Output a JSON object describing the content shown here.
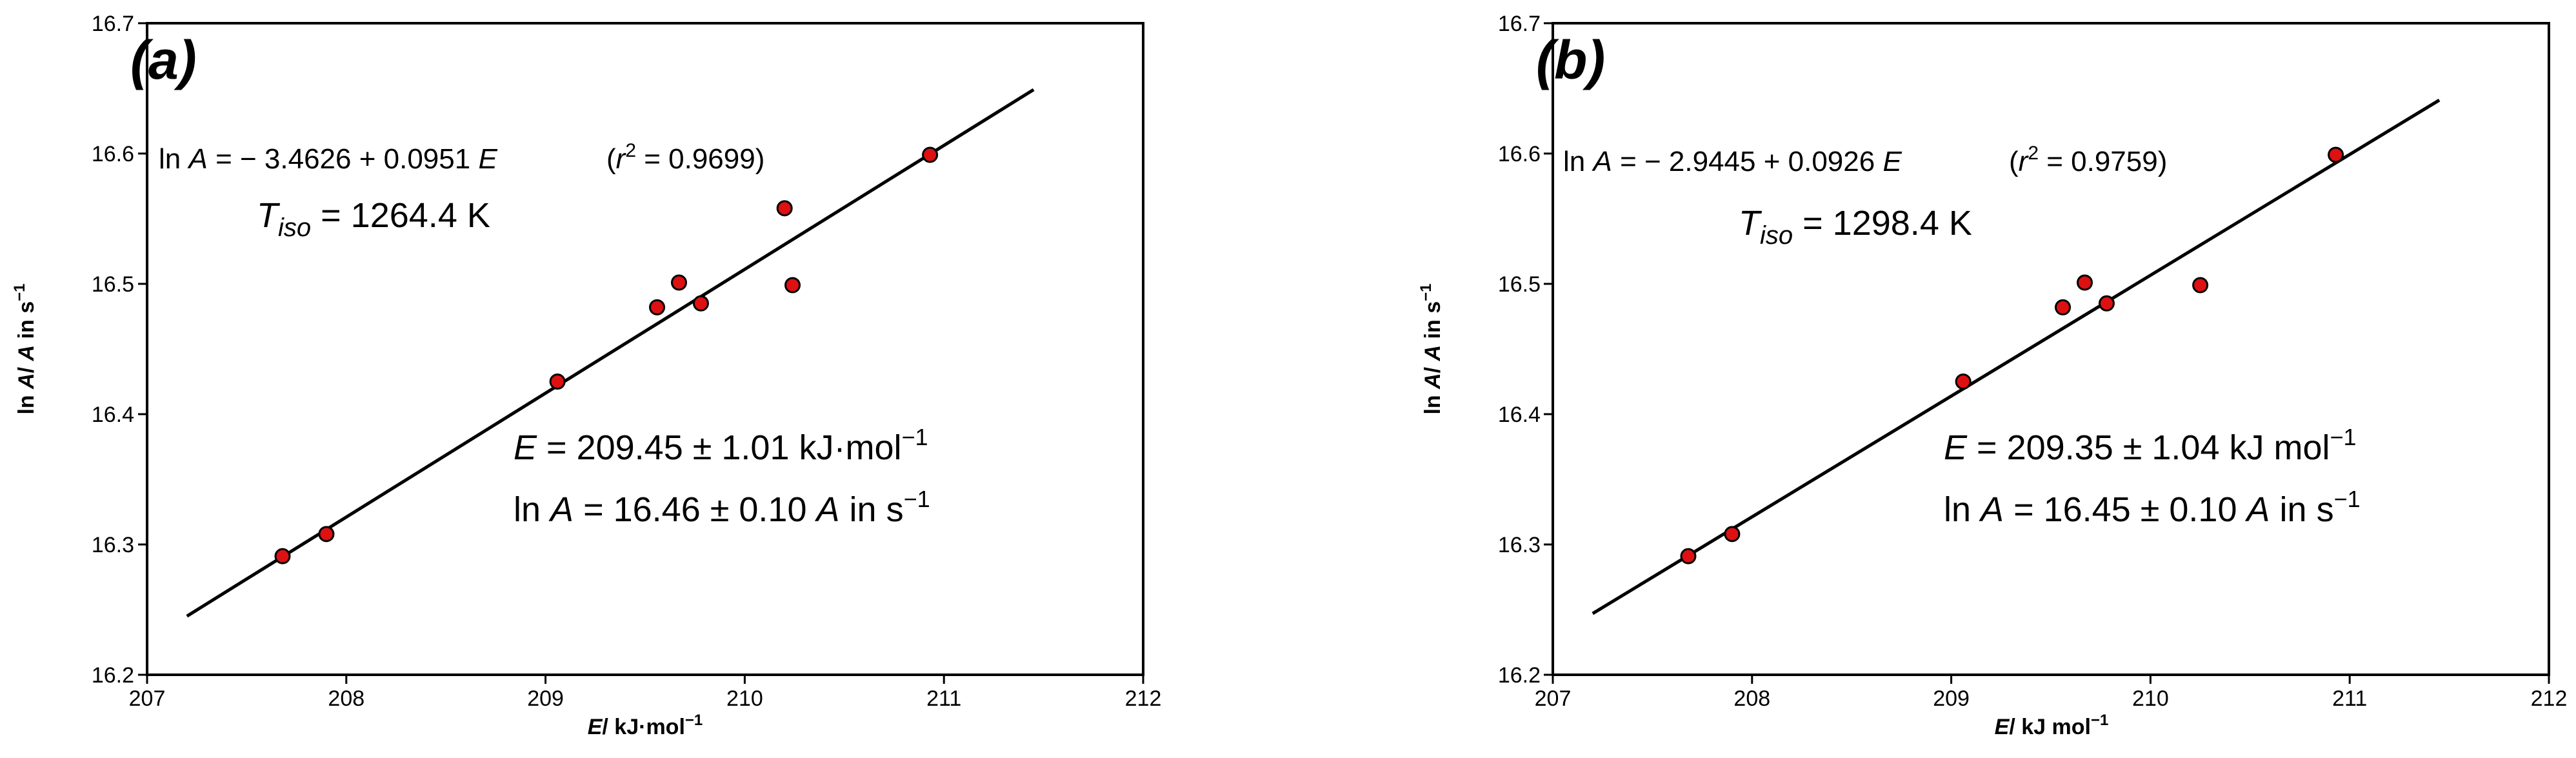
{
  "chart_data": [
    {
      "type": "scatter",
      "panel_label": "(a)",
      "xlabel": {
        "italic": "E",
        "rest": "/ kJ·mol",
        "sup": "−1"
      },
      "ylabel": {
        "pre": "ln ",
        "italic1": "A",
        "mid": "/ ",
        "italic2": "A",
        "post": " in s",
        "sup": "−1"
      },
      "xlim": [
        207,
        212
      ],
      "ylim": [
        16.2,
        16.7
      ],
      "x_ticks": [
        "207",
        "208",
        "209",
        "210",
        "211",
        "212"
      ],
      "y_ticks": [
        "16.2",
        "16.3",
        "16.4",
        "16.5",
        "16.6",
        "16.7"
      ],
      "grid": false,
      "marker_color": "#dd1111",
      "points": [
        {
          "x": 207.68,
          "y": 16.291
        },
        {
          "x": 207.9,
          "y": 16.308
        },
        {
          "x": 209.06,
          "y": 16.425
        },
        {
          "x": 209.56,
          "y": 16.482
        },
        {
          "x": 209.67,
          "y": 16.501
        },
        {
          "x": 209.78,
          "y": 16.485
        },
        {
          "x": 210.2,
          "y": 16.558
        },
        {
          "x": 210.24,
          "y": 16.499
        },
        {
          "x": 210.93,
          "y": 16.599
        }
      ],
      "fit_line": {
        "x": [
          207.2,
          211.45
        ],
        "y": [
          16.245,
          16.649
        ]
      },
      "annotations": {
        "equation": {
          "pre": "ln  ",
          "italic1": "A",
          "mid": " = − 3.4626 + 0.0951 ",
          "italic2": "E"
        },
        "r2": {
          "open": "(",
          "italic": "r",
          "sup": "2",
          "rest": " = 0.9699)"
        },
        "tiso": {
          "italic": "T",
          "sub": "iso",
          "rest": " = 1264.4 K"
        },
        "energy": {
          "italic": "E",
          "rest": " = 209.45 ± 1.01 kJ·mol",
          "sup": "−1"
        },
        "lnA": {
          "pre": "ln ",
          "italic1": "A",
          "mid": " = 16.46 ± 0.10 ",
          "italic2": "A",
          "post": " in s",
          "sup": "−1"
        }
      }
    },
    {
      "type": "scatter",
      "panel_label": "(b)",
      "xlabel": {
        "italic": "E",
        "rest": "/ kJ mol",
        "sup": "−1"
      },
      "ylabel": {
        "pre": "ln ",
        "italic1": "A",
        "mid": "/ ",
        "italic2": "A",
        "post": " in s",
        "sup": "−1"
      },
      "xlim": [
        207,
        212
      ],
      "ylim": [
        16.2,
        16.7
      ],
      "x_ticks": [
        "207",
        "208",
        "209",
        "210",
        "211",
        "212"
      ],
      "y_ticks": [
        "16.2",
        "16.3",
        "16.4",
        "16.5",
        "16.6",
        "16.7"
      ],
      "grid": false,
      "marker_color": "#dd1111",
      "points": [
        {
          "x": 207.68,
          "y": 16.291
        },
        {
          "x": 207.9,
          "y": 16.308
        },
        {
          "x": 209.06,
          "y": 16.425
        },
        {
          "x": 209.56,
          "y": 16.482
        },
        {
          "x": 209.67,
          "y": 16.501
        },
        {
          "x": 209.78,
          "y": 16.485
        },
        {
          "x": 210.25,
          "y": 16.499
        },
        {
          "x": 210.93,
          "y": 16.599
        }
      ],
      "fit_line": {
        "x": [
          207.2,
          211.45
        ],
        "y": [
          16.247,
          16.641
        ]
      },
      "annotations": {
        "equation": {
          "pre": "ln  ",
          "italic1": "A",
          "mid": " = − 2.9445 + 0.0926 ",
          "italic2": "E"
        },
        "r2": {
          "open": "(",
          "italic": "r",
          "sup": "2",
          "rest": " = 0.9759)"
        },
        "tiso": {
          "italic": "T",
          "sub": "iso",
          "rest": " = 1298.4 K"
        },
        "energy": {
          "italic": "E",
          "rest": " = 209.35 ± 1.04 kJ mol",
          "sup": "−1"
        },
        "lnA": {
          "pre": "ln ",
          "italic1": "A",
          "mid": " = 16.45 ± 0.10 ",
          "italic2": "A",
          "post": " in s",
          "sup": "−1"
        }
      }
    }
  ]
}
